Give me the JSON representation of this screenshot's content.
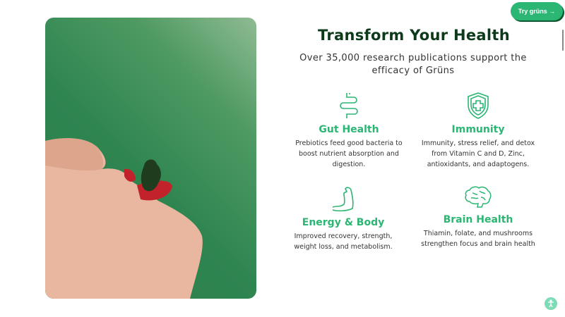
{
  "header": {
    "cta_label": "Try grüns →"
  },
  "main": {
    "title": "Transform Your Health",
    "subtitle": "Over 35,000 research publications support the efficacy of Grüns",
    "benefits": [
      {
        "icon": "intestine-icon",
        "title": "Gut Health",
        "text": "Prebiotics feed good bacteria to boost nutrient absorption and digestion."
      },
      {
        "icon": "shield-cross-icon",
        "title": "Immunity",
        "text": "Immunity, stress relief, and detox from Vitamin C and D, Zinc, antioxidants, and adaptogens."
      },
      {
        "icon": "flexed-arm-icon",
        "title": "Energy & Body",
        "text": "Improved recovery, strength, weight loss, and metabolism."
      },
      {
        "icon": "brain-icon",
        "title": "Brain Health",
        "text": "Thiamin, folate, and mushrooms strengthen focus and brain health"
      }
    ]
  },
  "colors": {
    "accent": "#2bb673",
    "title": "#0e3a1c",
    "photo_bg": "#2f8550"
  }
}
